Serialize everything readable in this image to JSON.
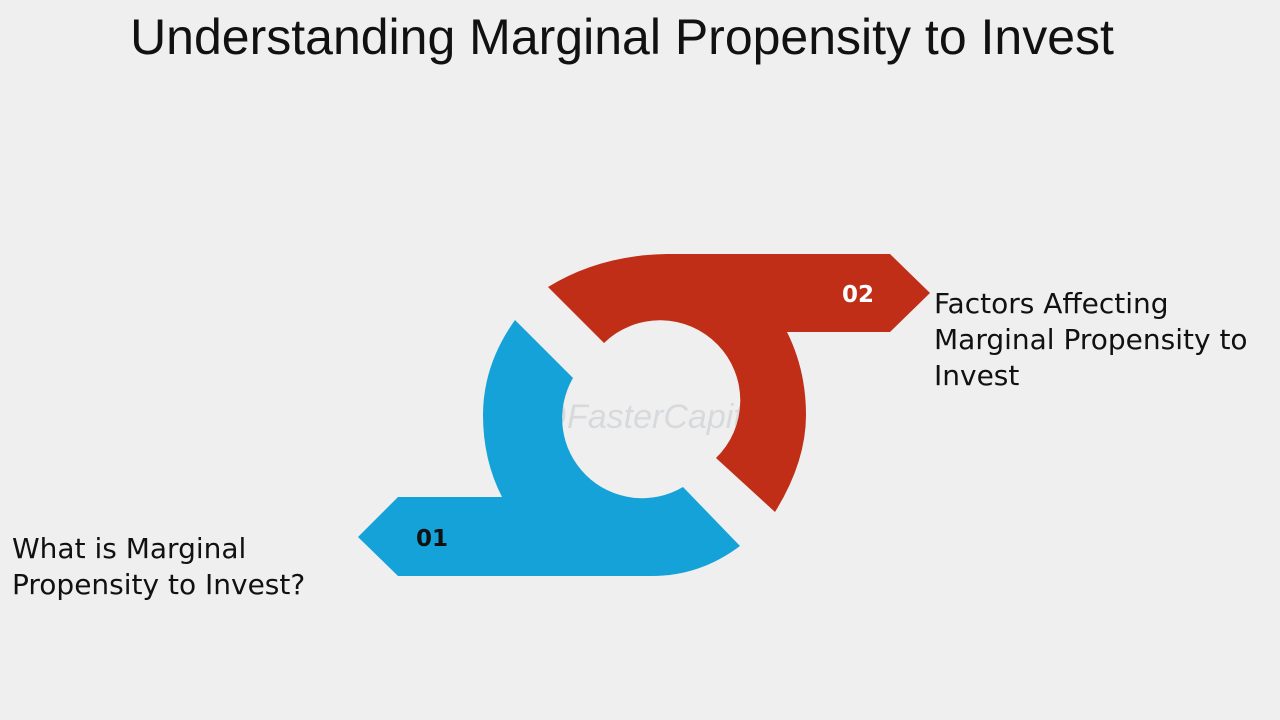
{
  "slide": {
    "title": "Understanding Marginal Propensity to Invest"
  },
  "steps": [
    {
      "number": "01",
      "label": "What is Marginal\nPropensity to Invest?",
      "color": "#14a2d8",
      "number_color": "#111111"
    },
    {
      "number": "02",
      "label": "Factors Affecting\nMarginal Propensity to\nInvest",
      "color": "#c02e18",
      "number_color": "#ffffff"
    }
  ],
  "watermark": {
    "text": "FasterCapital",
    "icon": "gear-brain-logo-icon"
  }
}
